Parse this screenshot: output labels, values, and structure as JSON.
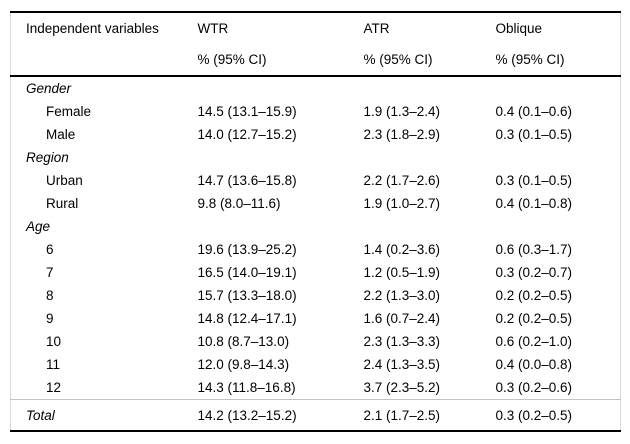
{
  "table": {
    "colors": {
      "rule_dark": "#000000",
      "rule_light": "#c4c4c4",
      "side_border": "#d9d9d9",
      "text": "#000000",
      "background": "#ffffff"
    },
    "header": {
      "col_label": "Independent variables",
      "cols": [
        {
          "title": "WTR",
          "subtitle": "% (95% CI)"
        },
        {
          "title": "ATR",
          "subtitle": "% (95% CI)"
        },
        {
          "title": "Oblique",
          "subtitle": "% (95% CI)"
        }
      ]
    },
    "rows": [
      {
        "type": "section",
        "label": "Gender"
      },
      {
        "type": "data",
        "label": "Female",
        "wtr": "14.5 (13.1–15.9)",
        "atr": "1.9 (1.3–2.4)",
        "oblique": "0.4 (0.1–0.6)"
      },
      {
        "type": "data",
        "label": "Male",
        "wtr": "14.0 (12.7–15.2)",
        "atr": "2.3 (1.8–2.9)",
        "oblique": "0.3 (0.1–0.5)"
      },
      {
        "type": "section",
        "label": "Region"
      },
      {
        "type": "data",
        "label": "Urban",
        "wtr": "14.7 (13.6–15.8)",
        "atr": "2.2 (1.7–2.6)",
        "oblique": "0.3 (0.1–0.5)"
      },
      {
        "type": "data",
        "label": "Rural",
        "wtr": "9.8 (8.0–11.6)",
        "atr": "1.9 (1.0–2.7)",
        "oblique": "0.4 (0.1–0.8)"
      },
      {
        "type": "section",
        "label": "Age"
      },
      {
        "type": "data",
        "label": "6",
        "wtr": "19.6 (13.9–25.2)",
        "atr": "1.4 (0.2–3.6)",
        "oblique": "0.6 (0.3–1.7)"
      },
      {
        "type": "data",
        "label": "7",
        "wtr": "16.5 (14.0–19.1)",
        "atr": "1.2 (0.5–1.9)",
        "oblique": "0.3 (0.2–0.7)"
      },
      {
        "type": "data",
        "label": "8",
        "wtr": "15.7 (13.3–18.0)",
        "atr": "2.2 (1.3–3.0)",
        "oblique": "0.2 (0.2–0.5)"
      },
      {
        "type": "data",
        "label": "9",
        "wtr": "14.8 (12.4–17.1)",
        "atr": "1.6 (0.7–2.4)",
        "oblique": "0.2 (0.2–0.5)"
      },
      {
        "type": "data",
        "label": "10",
        "wtr": "10.8 (8.7–13.0)",
        "atr": "2.3 (1.3–3.3)",
        "oblique": "0.6 (0.2–1.0)"
      },
      {
        "type": "data",
        "label": "11",
        "wtr": "12.0 (9.8–14.3)",
        "atr": "2.4 (1.3–3.5)",
        "oblique": "0.4 (0.0–0.8)"
      },
      {
        "type": "data",
        "label": "12",
        "wtr": "14.3 (11.8–16.8)",
        "atr": "3.7 (2.3–5.2)",
        "oblique": "0.3 (0.2–0.6)"
      },
      {
        "type": "total",
        "label": "Total",
        "wtr": "14.2 (13.2–15.2)",
        "atr": "2.1 (1.7–2.5)",
        "oblique": "0.3 (0.2–0.5)"
      }
    ]
  }
}
